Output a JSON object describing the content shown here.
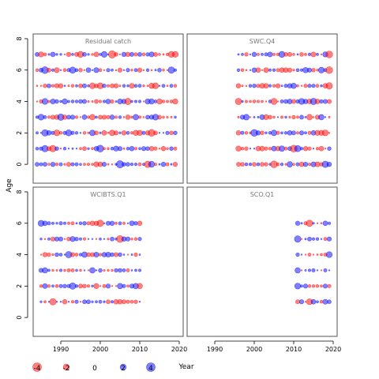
{
  "chart_data": {
    "type": "scatter",
    "title": "",
    "ylabel": "Age",
    "xlabel": "Year",
    "xlim": [
      1983,
      2021
    ],
    "ylim": [
      -1.2,
      8.3
    ],
    "xticks": [
      1990,
      2000,
      2010,
      2020
    ],
    "yticks": [
      0,
      2,
      4,
      6,
      8
    ],
    "colors": {
      "negative": "#ff0000",
      "positive": "#0000ff",
      "frame": "#555555"
    },
    "grid": false,
    "panels": [
      {
        "name": "Residual catch",
        "years": [
          1984,
          2019
        ],
        "ages": [
          0,
          1,
          2,
          3,
          4,
          5,
          6,
          7
        ],
        "amplitude": 3.0,
        "residuals": [
          [
            0,
            2005,
            4.5
          ],
          [
            0,
            2012,
            -3.5
          ],
          [
            1,
            1986,
            3.5
          ],
          [
            1,
            2000,
            4
          ],
          [
            2,
            1986,
            3.5
          ],
          [
            2,
            2013,
            -4
          ],
          [
            3,
            1990,
            3.5
          ],
          [
            3,
            2014,
            3
          ],
          [
            4,
            1986,
            3
          ],
          [
            5,
            2014,
            -3
          ],
          [
            6,
            1986,
            4
          ],
          [
            6,
            2018,
            3.5
          ],
          [
            7,
            2003,
            -4.5
          ],
          [
            7,
            2018,
            -3
          ]
        ]
      },
      {
        "name": "SWC.Q4",
        "years": [
          1996,
          2019
        ],
        "ages": [
          0,
          1,
          2,
          3,
          4,
          5,
          6,
          7
        ],
        "amplitude": 3.0,
        "residuals": [
          [
            0,
            2005,
            -4
          ],
          [
            0,
            2018,
            3.5
          ],
          [
            1,
            2010,
            -4
          ],
          [
            2,
            2000,
            4
          ],
          [
            2,
            2018,
            -3
          ],
          [
            4,
            2012,
            3
          ],
          [
            5,
            2019,
            -3.5
          ],
          [
            6,
            2019,
            -4
          ],
          [
            7,
            2019,
            -4
          ]
        ]
      },
      {
        "name": "WCIBTS.Q1",
        "years": [
          1985,
          2010
        ],
        "ages": [
          1,
          2,
          3,
          4,
          5,
          6
        ],
        "amplitude": 2.7,
        "residuals": [
          [
            1,
            1988,
            -3.5
          ],
          [
            2,
            1993,
            3.5
          ],
          [
            3,
            1986,
            2.5
          ],
          [
            4,
            1992,
            3.5
          ],
          [
            5,
            2005,
            -4
          ],
          [
            6,
            2000,
            -3.5
          ]
        ]
      },
      {
        "name": "SCO.Q1",
        "years": [
          2011,
          2019
        ],
        "ages": [
          1,
          2,
          3,
          4,
          5,
          6
        ],
        "amplitude": 2.3,
        "residuals": [
          [
            1,
            2014,
            -3
          ],
          [
            2,
            2011,
            3
          ],
          [
            3,
            2011,
            2.5
          ],
          [
            4,
            2019,
            3
          ],
          [
            5,
            2011,
            3.5
          ],
          [
            6,
            2014,
            -3.5
          ]
        ]
      }
    ],
    "legend": {
      "entries": [
        {
          "label": "-4",
          "value": -4
        },
        {
          "label": "-2",
          "value": -2
        },
        {
          "label": "0",
          "value": 0
        },
        {
          "label": "2",
          "value": 2
        },
        {
          "label": "4",
          "value": 4
        }
      ]
    }
  }
}
